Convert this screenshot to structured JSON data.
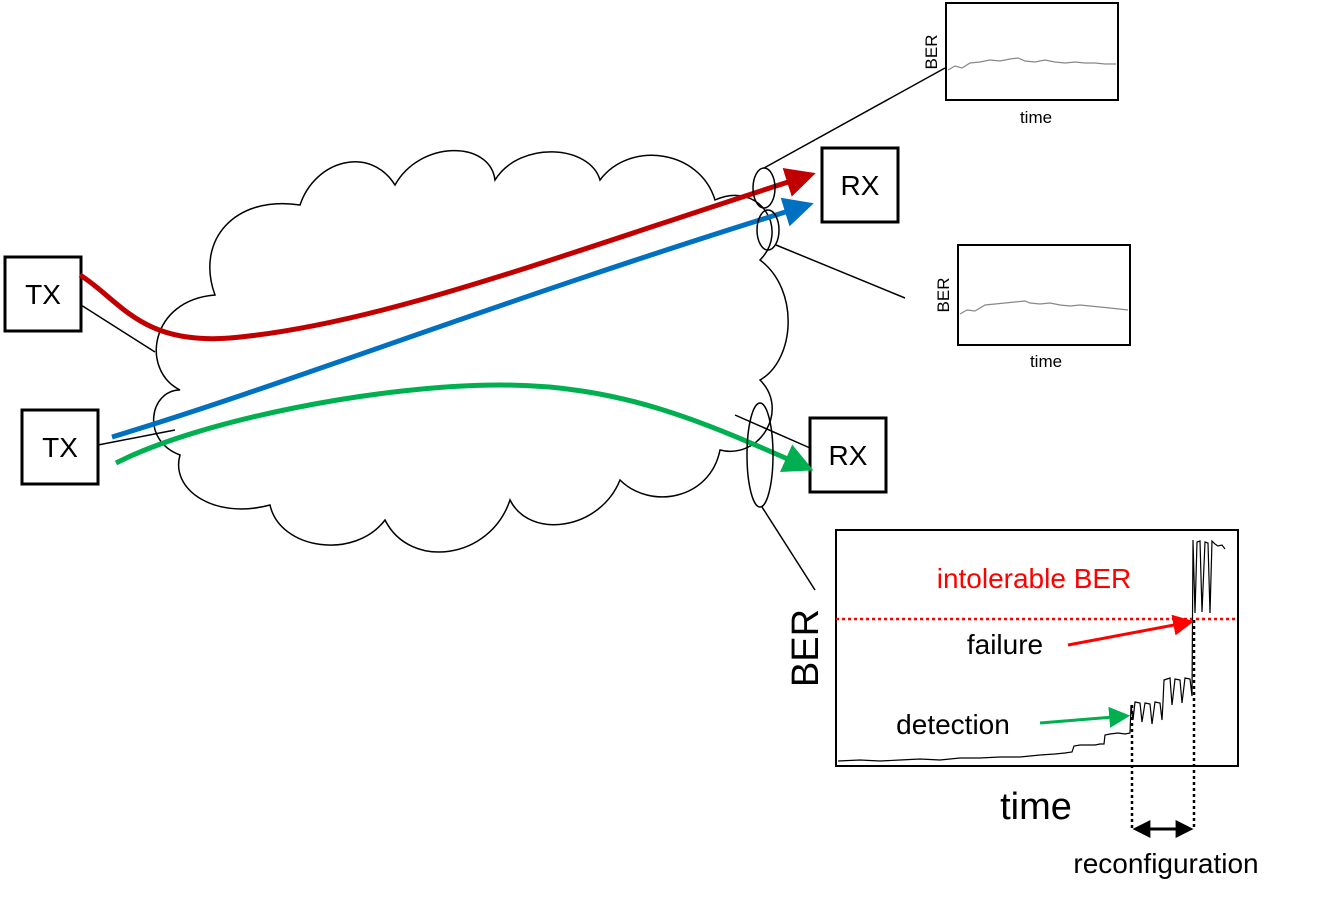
{
  "nodes": {
    "tx_top": "TX",
    "tx_bottom": "TX",
    "rx_top": "RX",
    "rx_bottom": "RX"
  },
  "monitor_top": {
    "ylabel": "BER",
    "xlabel": "time"
  },
  "monitor_middle": {
    "ylabel": "BER",
    "xlabel": "time"
  },
  "main_plot": {
    "ylabel": "BER",
    "xlabel": "time",
    "threshold_label": "intolerable BER",
    "failure_label": "failure",
    "detection_label": "detection",
    "reconfiguration_label": "reconfiguration"
  },
  "colors": {
    "path_red": "#c00000",
    "path_blue": "#0070c0",
    "path_green": "#00b050",
    "threshold": "#ff0000",
    "failure_arrow": "#ff0000",
    "detection_arrow": "#00b050"
  }
}
